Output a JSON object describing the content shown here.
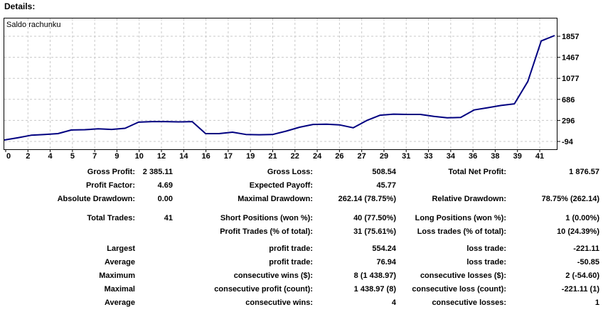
{
  "page": {
    "heading": "Details:"
  },
  "chart_data": {
    "type": "line",
    "title": "Saldo rachunku",
    "x_range": [
      0,
      41
    ],
    "series": [
      {
        "name": "Saldo rachunku",
        "values": [
          100,
          140,
          185,
          200,
          215,
          280,
          285,
          300,
          290,
          310,
          420,
          430,
          430,
          425,
          430,
          215,
          215,
          240,
          200,
          195,
          200,
          260,
          330,
          380,
          385,
          370,
          320,
          450,
          545,
          565,
          560,
          560,
          525,
          500,
          505,
          640,
          680,
          720,
          750,
          1150,
          1880,
          1976.57
        ]
      }
    ],
    "x_tick_labels": [
      "0",
      "2",
      "4",
      "5",
      "7",
      "9",
      "10",
      "12",
      "14",
      "16",
      "17",
      "19",
      "21",
      "22",
      "24",
      "26",
      "27",
      "29",
      "31",
      "33",
      "34",
      "36",
      "38",
      "39",
      "41"
    ],
    "y_tick_labels": [
      "1857",
      "1467",
      "1077",
      "686",
      "296",
      "-94"
    ],
    "xlabel": "",
    "ylabel": "",
    "grid": "dashed",
    "legend_position": "top-left-inside",
    "line_color": "#000080",
    "grid_color": "#c8c8c8",
    "border_color": "#000000"
  },
  "stats_rows": [
    {
      "gap": 0,
      "cells": [
        "Gross Profit:",
        "2 385.11",
        "Gross Loss:",
        "508.54",
        "Total Net Profit:",
        "1 876.57"
      ]
    },
    {
      "gap": 0,
      "cells": [
        "Profit Factor:",
        "4.69",
        "Expected Payoff:",
        "45.77",
        "",
        ""
      ]
    },
    {
      "gap": 0,
      "cells": [
        "Absolute Drawdown:",
        "0.00",
        "Maximal Drawdown:",
        "262.14 (78.75%)",
        "Relative Drawdown:",
        "78.75% (262.14)"
      ]
    },
    {
      "gap": 8,
      "cells": [
        "Total Trades:",
        "41",
        "Short Positions (won %):",
        "40 (77.50%)",
        "Long Positions (won %):",
        "1 (0.00%)"
      ]
    },
    {
      "gap": 0,
      "cells": [
        "",
        "",
        "Profit Trades (% of total):",
        "31 (75.61%)",
        "Loss trades (% of total):",
        "10 (24.39%)"
      ]
    },
    {
      "gap": 5,
      "cells": [
        "Largest",
        "",
        "profit trade:",
        "554.24",
        "loss trade:",
        "-221.11"
      ]
    },
    {
      "gap": 0,
      "cells": [
        "Average",
        "",
        "profit trade:",
        "76.94",
        "loss trade:",
        "-50.85"
      ]
    },
    {
      "gap": 0,
      "cells": [
        "Maximum",
        "",
        "consecutive wins ($):",
        "8 (1 438.97)",
        "consecutive losses ($):",
        "2 (-54.60)"
      ]
    },
    {
      "gap": 0,
      "cells": [
        "Maximal",
        "",
        "consecutive profit (count):",
        "1 438.97 (8)",
        "consecutive loss (count):",
        "-221.11 (1)"
      ]
    },
    {
      "gap": 0,
      "cells": [
        "Average",
        "",
        "consecutive wins:",
        "4",
        "consecutive losses:",
        "1"
      ]
    }
  ]
}
